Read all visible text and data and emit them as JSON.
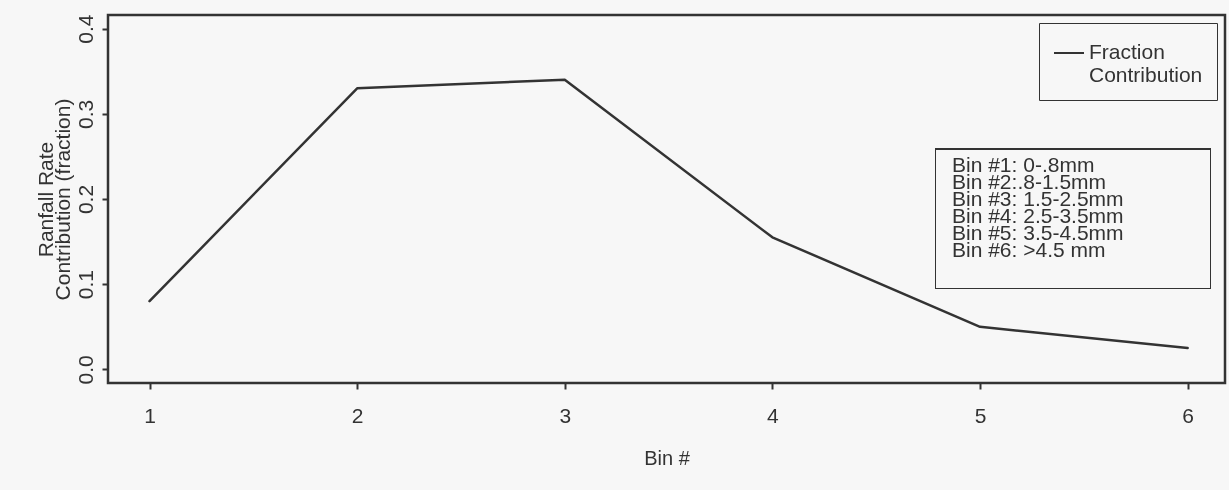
{
  "chart_data": {
    "type": "line",
    "xlabel": "Bin #",
    "ylabel": "Ranfall Rate\nContribution (fraction)",
    "x": [
      1,
      2,
      3,
      4,
      5,
      6
    ],
    "series": [
      {
        "name": "Fraction Contribution",
        "color": "#333333",
        "values": [
          0.08,
          0.33,
          0.34,
          0.155,
          0.05,
          0.025
        ]
      }
    ],
    "xlim": [
      0.8,
      6.18
    ],
    "xticks": [
      1,
      2,
      3,
      4,
      5,
      6
    ],
    "ylim": [
      -0.016,
      0.416
    ],
    "yticks": [
      {
        "value": 0,
        "label": "0.0"
      },
      0.1,
      0.2,
      0.3,
      0.4
    ],
    "grid": false,
    "legend": "top right",
    "marker": "none",
    "line_style": "solid",
    "annotations": [
      "Bin #1: 0-.8mm\nBin #2:.8-1.5mm\nBin #3: 1.5-2.5mm\nBin #4: 2.5-3.5mm\nBin #5: 3.5-4.5mm\nBin #6: >4.5 mm"
    ]
  }
}
